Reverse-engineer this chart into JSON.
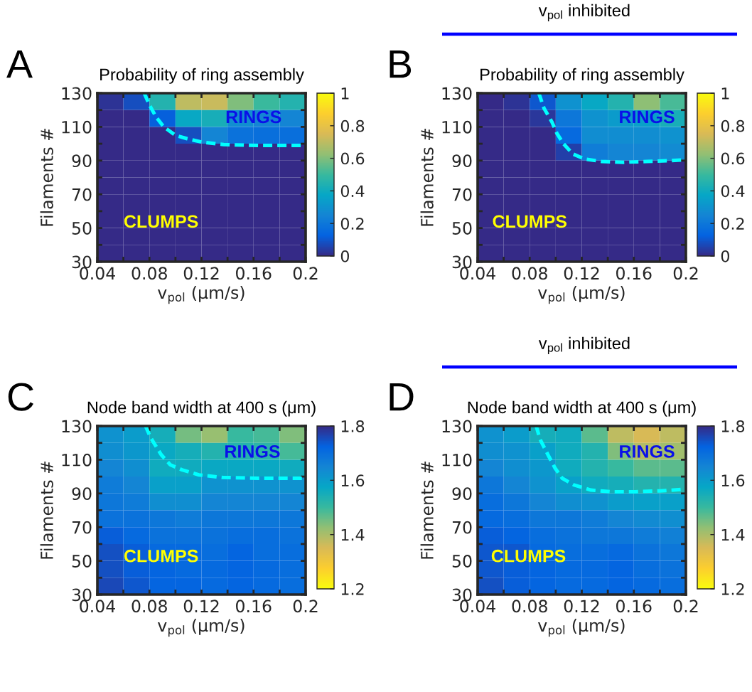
{
  "chart_data": [
    {
      "type": "heatmap",
      "title": "Probability of ring assembly",
      "xlabel": "v$_{pol}$ (μm/s)",
      "ylabel": "Filaments #",
      "x": [
        0.05,
        0.07,
        0.09,
        0.11,
        0.13,
        0.15,
        0.17,
        0.19
      ],
      "xlim": [
        0.04,
        0.2
      ],
      "xticks": [
        0.04,
        {
          "value": 0.06,
          "label": null
        },
        0.08,
        {
          "value": 0.1,
          "label": null
        },
        0.12,
        {
          "value": 0.14,
          "label": null
        },
        0.16,
        {
          "value": 0.18,
          "label": null
        },
        0.2
      ],
      "ylim": [
        30,
        130
      ],
      "yticks": [
        30,
        {
          "value": 40,
          "label": null
        },
        50,
        {
          "value": 60,
          "label": null
        },
        70,
        {
          "value": 80,
          "label": null
        },
        90,
        {
          "value": 100,
          "label": null
        },
        110,
        {
          "value": 120,
          "label": null
        },
        130
      ],
      "cells": [
        [
          0.02,
          0.08,
          0.45,
          0.7,
          0.72,
          0.6,
          0.5,
          0.45
        ],
        [
          0,
          0,
          0.12,
          0.38,
          0.42,
          0.28,
          0.25,
          0.25
        ],
        [
          0,
          0,
          0,
          0.08,
          0.25,
          0.18,
          0.17,
          0.17
        ],
        [
          0,
          0,
          0,
          0,
          0,
          0,
          0,
          0
        ],
        [
          0,
          0,
          0,
          0,
          0,
          0,
          0,
          0
        ],
        [
          0,
          0,
          0,
          0,
          0,
          0,
          0,
          0
        ],
        [
          0,
          0,
          0,
          0,
          0,
          0,
          0,
          0
        ],
        [
          0,
          0,
          0,
          0,
          0,
          0,
          0,
          0
        ],
        [
          0,
          0,
          0,
          0,
          0,
          0,
          0,
          0
        ],
        [
          0,
          0,
          0,
          0,
          0,
          0,
          0,
          0
        ]
      ],
      "clim": [
        0,
        1
      ],
      "cticks": [
        0,
        0.2,
        0.4,
        0.6,
        0.8,
        1
      ],
      "series": [
        {
          "type": "line",
          "color": "#00ffff",
          "line_style": "dashed",
          "x": [
            0.076,
            0.08,
            0.085,
            0.091,
            0.1,
            0.109,
            0.12,
            0.137,
            0.164,
            0.2
          ],
          "values": [
            130,
            123,
            116,
            110,
            105,
            103,
            101,
            99.5,
            99,
            99
          ]
        }
      ],
      "annotations": [
        "A",
        "RINGS",
        "CLUMPS"
      ]
    },
    {
      "type": "heatmap",
      "title": "Probability of ring assembly",
      "xlabel": "v$_{pol}$ (μm/s)",
      "ylabel": "Filaments #",
      "x": [
        0.05,
        0.07,
        0.09,
        0.11,
        0.13,
        0.15,
        0.17,
        0.19
      ],
      "xlim": [
        0.04,
        0.2
      ],
      "xticks": [
        0.04,
        {
          "value": 0.06,
          "label": null
        },
        0.08,
        {
          "value": 0.1,
          "label": null
        },
        0.12,
        {
          "value": 0.14,
          "label": null
        },
        0.16,
        {
          "value": 0.18,
          "label": null
        },
        0.2
      ],
      "ylim": [
        30,
        130
      ],
      "yticks": [
        30,
        {
          "value": 40,
          "label": null
        },
        50,
        {
          "value": 60,
          "label": null
        },
        70,
        {
          "value": 80,
          "label": null
        },
        90,
        {
          "value": 100,
          "label": null
        },
        110,
        {
          "value": 120,
          "label": null
        },
        130
      ],
      "cells": [
        [
          0,
          0.02,
          0.1,
          0.3,
          0.38,
          0.45,
          0.62,
          0.52
        ],
        [
          0,
          0,
          0.03,
          0.2,
          0.3,
          0.33,
          0.35,
          0.42
        ],
        [
          0,
          0,
          0,
          0.15,
          0.28,
          0.28,
          0.28,
          0.3
        ],
        [
          0,
          0,
          0,
          0.05,
          0.22,
          0.25,
          0.25,
          0.27
        ],
        [
          0,
          0,
          0,
          0,
          0,
          0,
          0,
          0
        ],
        [
          0,
          0,
          0,
          0,
          0,
          0,
          0,
          0
        ],
        [
          0,
          0,
          0,
          0,
          0,
          0,
          0,
          0
        ],
        [
          0,
          0,
          0,
          0,
          0,
          0,
          0,
          0
        ],
        [
          0,
          0,
          0,
          0,
          0,
          0,
          0,
          0
        ],
        [
          0,
          0,
          0,
          0,
          0,
          0,
          0,
          0
        ]
      ],
      "clim": [
        0,
        1
      ],
      "cticks": [
        0,
        0.2,
        0.4,
        0.6,
        0.8,
        1
      ],
      "series": [
        {
          "type": "line",
          "color": "#00ffff",
          "line_style": "dashed",
          "x": [
            0.087,
            0.091,
            0.097,
            0.101,
            0.106,
            0.113,
            0.122,
            0.135,
            0.152,
            0.17,
            0.189,
            0.2
          ],
          "values": [
            130,
            121,
            113,
            106,
            100,
            94,
            91,
            89.5,
            89,
            89.5,
            90,
            90.5
          ]
        }
      ],
      "annotations": [
        "B",
        "v$_{pol}$ inhibited",
        "RINGS",
        "CLUMPS"
      ]
    },
    {
      "type": "heatmap",
      "title": "Node band width at 400 s (μm)",
      "xlabel": "v$_{pol}$ (μm/s)",
      "ylabel": "Filaments #",
      "x": [
        0.05,
        0.07,
        0.09,
        0.11,
        0.13,
        0.15,
        0.17,
        0.19
      ],
      "xlim": [
        0.04,
        0.2
      ],
      "xticks": [
        0.04,
        {
          "value": 0.06,
          "label": null
        },
        0.08,
        {
          "value": 0.1,
          "label": null
        },
        0.12,
        {
          "value": 0.14,
          "label": null
        },
        0.16,
        {
          "value": 0.18,
          "label": null
        },
        0.2
      ],
      "ylim": [
        30,
        130
      ],
      "yticks": [
        30,
        {
          "value": 40,
          "label": null
        },
        50,
        {
          "value": 60,
          "label": null
        },
        70,
        {
          "value": 80,
          "label": null
        },
        90,
        {
          "value": 100,
          "label": null
        },
        110,
        {
          "value": 120,
          "label": null
        },
        130
      ],
      "cells": [
        [
          1.62,
          1.6,
          1.55,
          1.45,
          1.42,
          1.5,
          1.49,
          1.44
        ],
        [
          1.63,
          1.61,
          1.57,
          1.55,
          1.53,
          1.53,
          1.52,
          1.49
        ],
        [
          1.65,
          1.63,
          1.56,
          1.56,
          1.57,
          1.57,
          1.57,
          1.56
        ],
        [
          1.67,
          1.65,
          1.59,
          1.59,
          1.62,
          1.62,
          1.62,
          1.62
        ],
        [
          1.68,
          1.67,
          1.63,
          1.63,
          1.65,
          1.65,
          1.65,
          1.65
        ],
        [
          1.69,
          1.69,
          1.68,
          1.67,
          1.68,
          1.68,
          1.68,
          1.68
        ],
        [
          1.73,
          1.71,
          1.69,
          1.69,
          1.69,
          1.7,
          1.7,
          1.69
        ],
        [
          1.75,
          1.73,
          1.71,
          1.71,
          1.7,
          1.72,
          1.7,
          1.7
        ],
        [
          1.75,
          1.73,
          1.72,
          1.71,
          1.71,
          1.72,
          1.71,
          1.7
        ],
        [
          1.76,
          1.74,
          1.72,
          1.72,
          1.71,
          1.72,
          1.71,
          1.7
        ]
      ],
      "clim": [
        1.2,
        1.8
      ],
      "cticks": [
        1.2,
        1.4,
        1.6,
        1.8
      ],
      "series": [
        {
          "type": "line",
          "color": "#00ffff",
          "line_style": "dashed",
          "x": [
            0.077,
            0.081,
            0.089,
            0.096,
            0.105,
            0.118,
            0.136,
            0.164,
            0.2
          ],
          "values": [
            130,
            123,
            113,
            107,
            104,
            101,
            99.5,
            99,
            99
          ]
        }
      ],
      "annotations": [
        "C",
        "RINGS",
        "CLUMPS"
      ]
    },
    {
      "type": "heatmap",
      "title": "Node band width at 400 s (μm)",
      "xlabel": "v$_{pol}$ (μm/s)",
      "ylabel": "Filaments #",
      "x": [
        0.05,
        0.07,
        0.09,
        0.11,
        0.13,
        0.15,
        0.17,
        0.19
      ],
      "xlim": [
        0.04,
        0.2
      ],
      "xticks": [
        0.04,
        {
          "value": 0.06,
          "label": null
        },
        0.08,
        {
          "value": 0.1,
          "label": null
        },
        0.12,
        {
          "value": 0.14,
          "label": null
        },
        0.16,
        {
          "value": 0.18,
          "label": null
        },
        0.2
      ],
      "ylim": [
        30,
        130
      ],
      "yticks": [
        30,
        {
          "value": 40,
          "label": null
        },
        50,
        {
          "value": 60,
          "label": null
        },
        70,
        {
          "value": 80,
          "label": null
        },
        90,
        {
          "value": 100,
          "label": null
        },
        110,
        {
          "value": 120,
          "label": null
        },
        130
      ],
      "cells": [
        [
          1.62,
          1.6,
          1.55,
          1.56,
          1.47,
          1.38,
          1.35,
          1.38
        ],
        [
          1.63,
          1.62,
          1.59,
          1.56,
          1.53,
          1.44,
          1.39,
          1.41
        ],
        [
          1.65,
          1.63,
          1.61,
          1.56,
          1.53,
          1.5,
          1.47,
          1.47
        ],
        [
          1.68,
          1.65,
          1.62,
          1.59,
          1.56,
          1.55,
          1.53,
          1.53
        ],
        [
          1.7,
          1.68,
          1.65,
          1.63,
          1.62,
          1.6,
          1.59,
          1.59
        ],
        [
          1.71,
          1.7,
          1.68,
          1.68,
          1.67,
          1.65,
          1.64,
          1.63
        ],
        [
          1.73,
          1.72,
          1.7,
          1.69,
          1.68,
          1.68,
          1.67,
          1.66
        ],
        [
          1.74,
          1.74,
          1.71,
          1.7,
          1.7,
          1.71,
          1.69,
          1.68
        ],
        [
          1.74,
          1.73,
          1.72,
          1.71,
          1.71,
          1.72,
          1.7,
          1.69
        ],
        [
          1.75,
          1.73,
          1.72,
          1.71,
          1.71,
          1.72,
          1.71,
          1.7
        ]
      ],
      "clim": [
        1.2,
        1.8
      ],
      "cticks": [
        1.2,
        1.4,
        1.6,
        1.8
      ],
      "series": [
        {
          "type": "line",
          "color": "#00ffff",
          "line_style": "dashed",
          "x": [
            0.085,
            0.088,
            0.094,
            0.0995,
            0.105,
            0.114,
            0.127,
            0.142,
            0.161,
            0.18,
            0.2
          ],
          "values": [
            130,
            122,
            113,
            105,
            99,
            95,
            92,
            91,
            91,
            91.5,
            92.5
          ]
        }
      ],
      "annotations": [
        "D",
        "v$_{pol}$ inhibited",
        "RINGS",
        "CLUMPS"
      ]
    }
  ]
}
